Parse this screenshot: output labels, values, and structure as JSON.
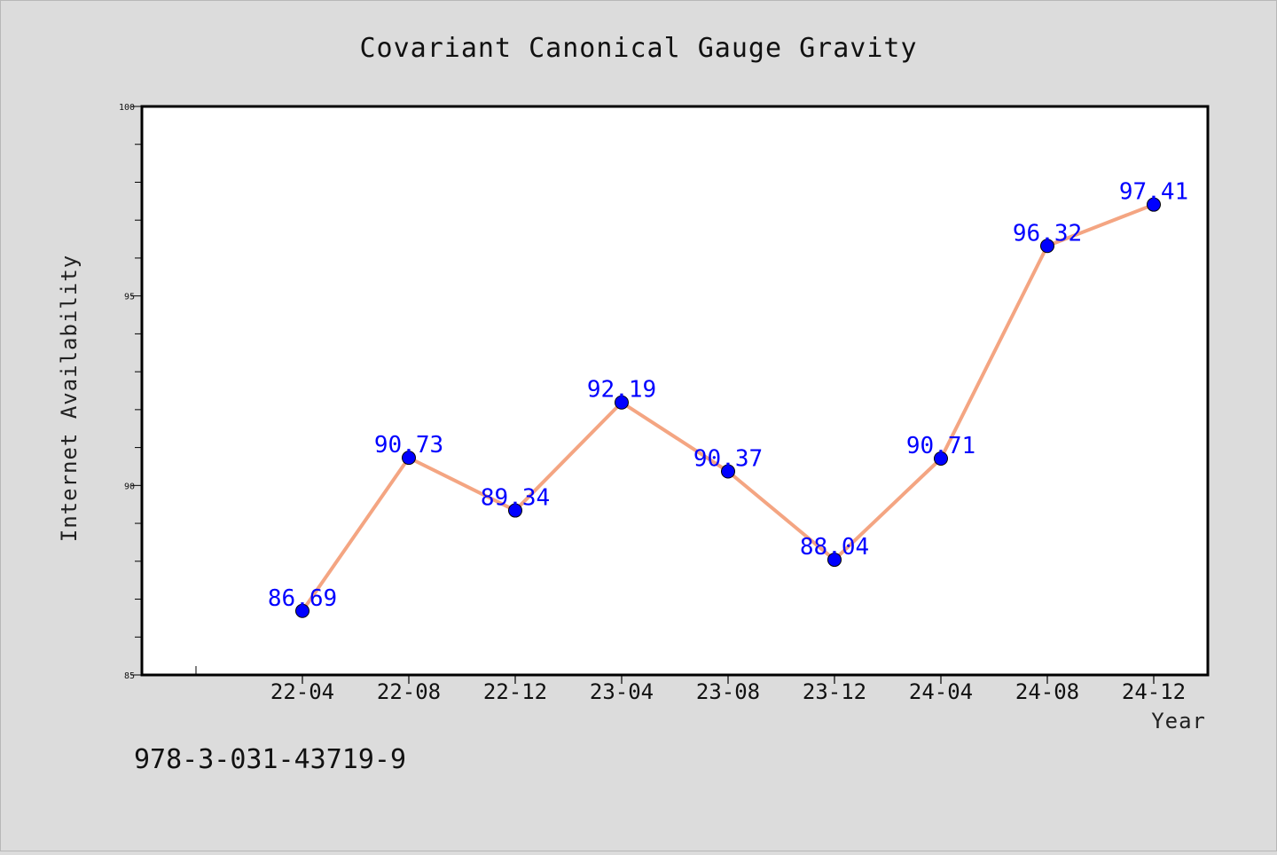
{
  "chart_data": {
    "type": "line",
    "title": "Covariant Canonical Gauge Gravity",
    "xlabel": "Year",
    "ylabel": "Internet Availability",
    "categories": [
      "22-04",
      "22-08",
      "22-12",
      "23-04",
      "23-08",
      "23-12",
      "24-04",
      "24-08",
      "24-12"
    ],
    "values": [
      86.69,
      90.73,
      89.34,
      92.19,
      90.37,
      88.04,
      90.71,
      96.32,
      97.41
    ],
    "ylim": [
      85,
      100
    ],
    "yticks": [
      85,
      90,
      95,
      100
    ],
    "grid": false,
    "legend": "none",
    "line_color": "#f4a582",
    "marker_color": "#0000ff",
    "label_color": "#0000ff",
    "annotation": "978-3-031-43719-9"
  }
}
